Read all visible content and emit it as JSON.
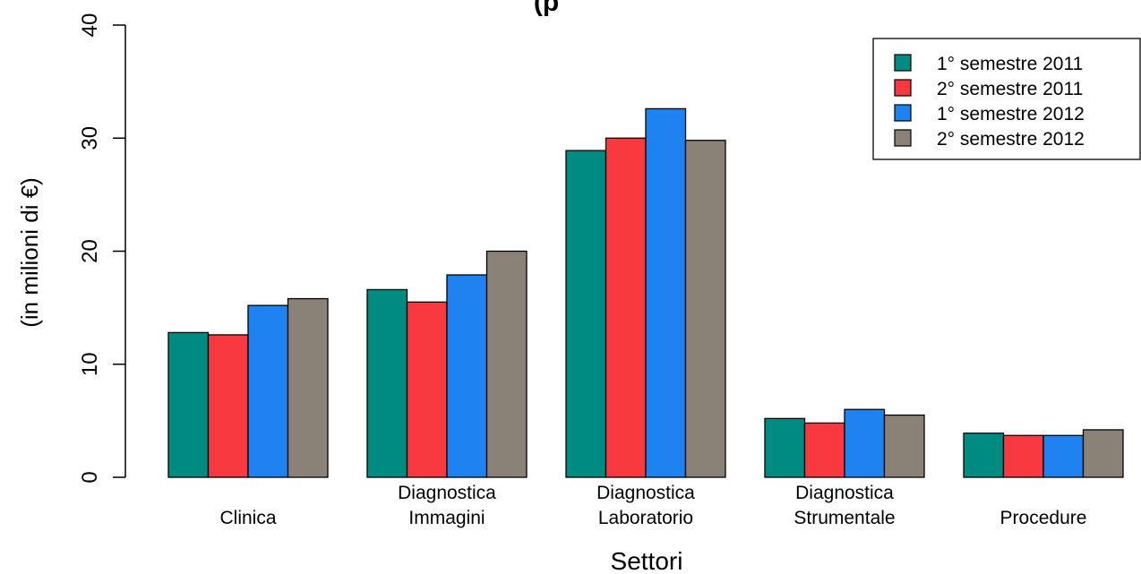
{
  "chart_data": {
    "type": "bar",
    "title": "(p",
    "xlabel": "Settori",
    "ylabel": "(in milioni di €)",
    "ylim": [
      0,
      40
    ],
    "yticks": [
      0,
      10,
      20,
      30,
      40
    ],
    "grid": false,
    "legend_position": "top-right",
    "categories": [
      [
        "Clinica"
      ],
      [
        "Diagnostica",
        "Immagini"
      ],
      [
        "Diagnostica",
        "Laboratorio"
      ],
      [
        "Diagnostica",
        "Strumentale"
      ],
      [
        "Procedure"
      ]
    ],
    "series": [
      {
        "name": "1° semestre 2011",
        "color": "#008b82",
        "values": [
          12.8,
          16.6,
          28.9,
          5.2,
          3.9
        ]
      },
      {
        "name": "2° semestre 2011",
        "color": "#f8393f",
        "values": [
          12.6,
          15.5,
          30.0,
          4.8,
          3.7
        ]
      },
      {
        "name": "1° semestre 2012",
        "color": "#1e83f0",
        "values": [
          15.2,
          17.9,
          32.6,
          6.0,
          3.7
        ]
      },
      {
        "name": "2° semestre 2012",
        "color": "#8a8177",
        "values": [
          15.8,
          20.0,
          29.8,
          5.5,
          4.2
        ]
      }
    ]
  }
}
